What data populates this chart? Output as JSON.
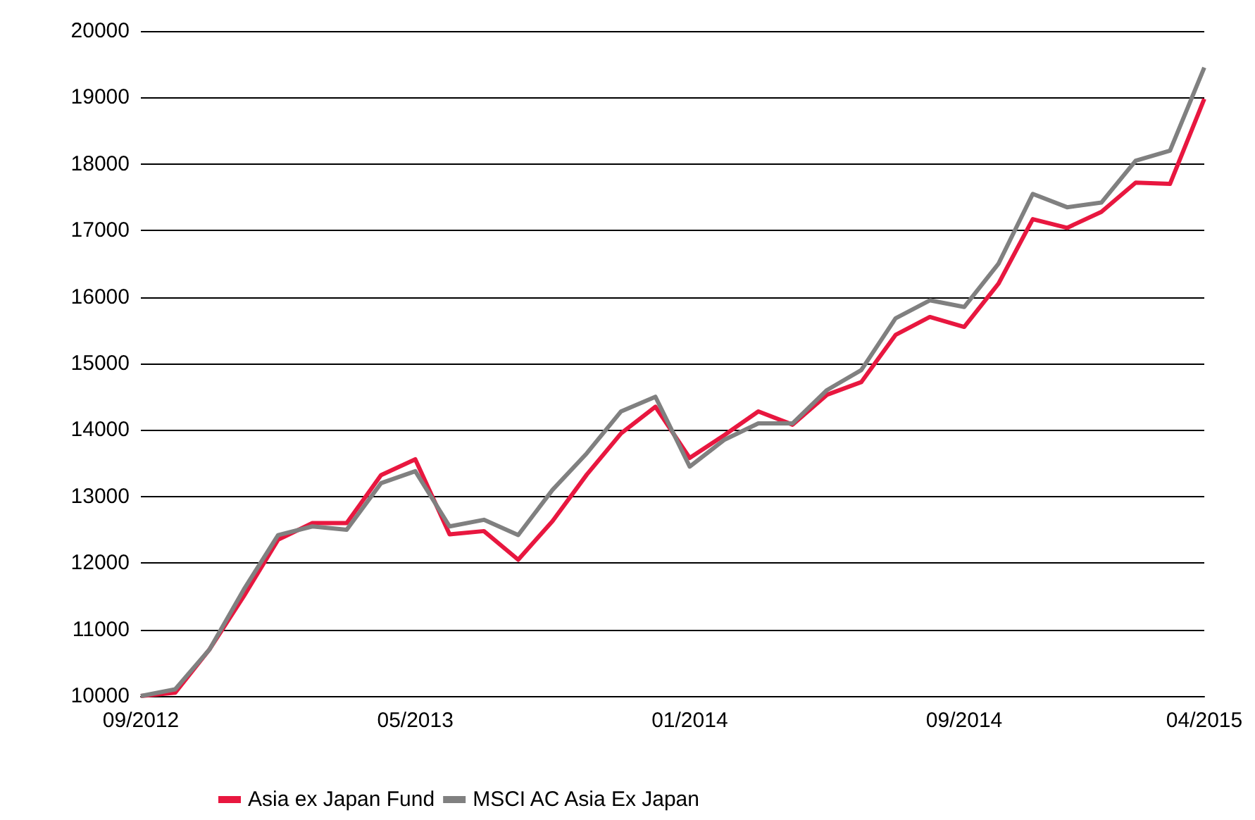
{
  "chart_data": {
    "type": "line",
    "categories": [
      "09/2012",
      null,
      null,
      null,
      null,
      null,
      null,
      null,
      "05/2013",
      null,
      null,
      null,
      null,
      null,
      null,
      null,
      "01/2014",
      null,
      null,
      null,
      null,
      null,
      null,
      null,
      "09/2014",
      null,
      null,
      null,
      null,
      null,
      null,
      "04/2015"
    ],
    "series": [
      {
        "name": "Asia ex Japan Fund",
        "color": "#e8173f",
        "values": [
          10000,
          10050,
          10700,
          11500,
          12350,
          12600,
          12600,
          13320,
          13560,
          12430,
          12480,
          12050,
          12630,
          13330,
          13950,
          14350,
          13580,
          13920,
          14280,
          14080,
          14530,
          14720,
          15430,
          15700,
          15550,
          16200,
          17170,
          17040,
          17280,
          17720,
          17700,
          18980
        ]
      },
      {
        "name": "MSCI AC Asia Ex Japan",
        "color": "#808080",
        "values": [
          10000,
          10100,
          10700,
          11600,
          12420,
          12550,
          12500,
          13200,
          13380,
          12550,
          12650,
          12420,
          13100,
          13650,
          14280,
          14500,
          13450,
          13850,
          14100,
          14100,
          14600,
          14900,
          15680,
          15950,
          15850,
          16500,
          17550,
          17350,
          17420,
          18050,
          18200,
          19450
        ]
      }
    ],
    "ylim": [
      10000,
      20000
    ],
    "yticks": [
      10000,
      11000,
      12000,
      13000,
      14000,
      15000,
      16000,
      17000,
      18000,
      19000,
      20000
    ],
    "grid": "y",
    "legend": "bottom",
    "marker": "none",
    "line_style": "solid"
  }
}
